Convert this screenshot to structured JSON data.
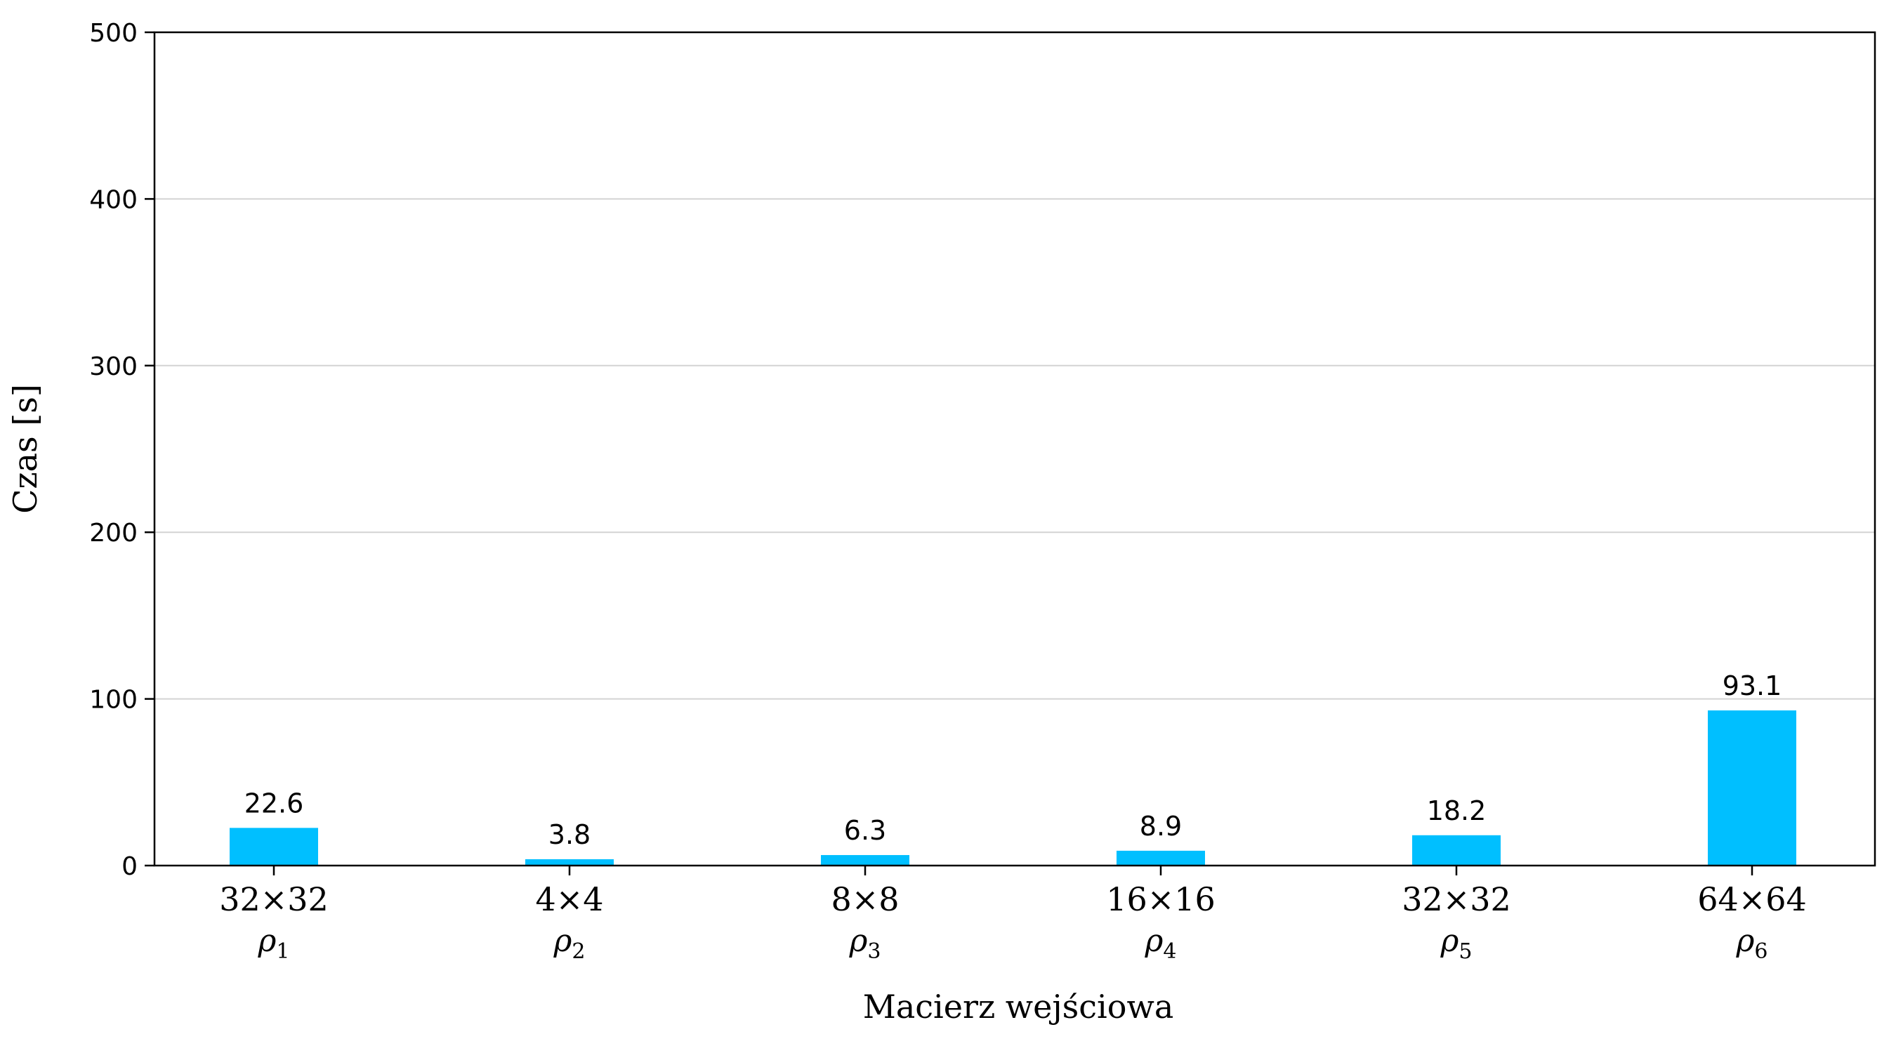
{
  "chart_data": {
    "type": "bar",
    "categories": [
      "32×32",
      "4×4",
      "8×8",
      "16×16",
      "32×32",
      "64×64"
    ],
    "subcategories": [
      "ρ1",
      "ρ2",
      "ρ3",
      "ρ4",
      "ρ5",
      "ρ6"
    ],
    "values": [
      22.6,
      3.8,
      6.3,
      8.9,
      18.2,
      93.1
    ],
    "data_labels": [
      "22.6",
      "3.8",
      "6.3",
      "8.9",
      "18.2",
      "93.1"
    ],
    "xlabel": "Macierz wejściowa",
    "ylabel": "Czas [s]",
    "ylim": [
      0,
      500
    ],
    "yticks": [
      0,
      100,
      200,
      300,
      400,
      500
    ],
    "grid": "horizontal",
    "bar_color": "#00bfff",
    "grid_color": "#d3d3d3"
  }
}
